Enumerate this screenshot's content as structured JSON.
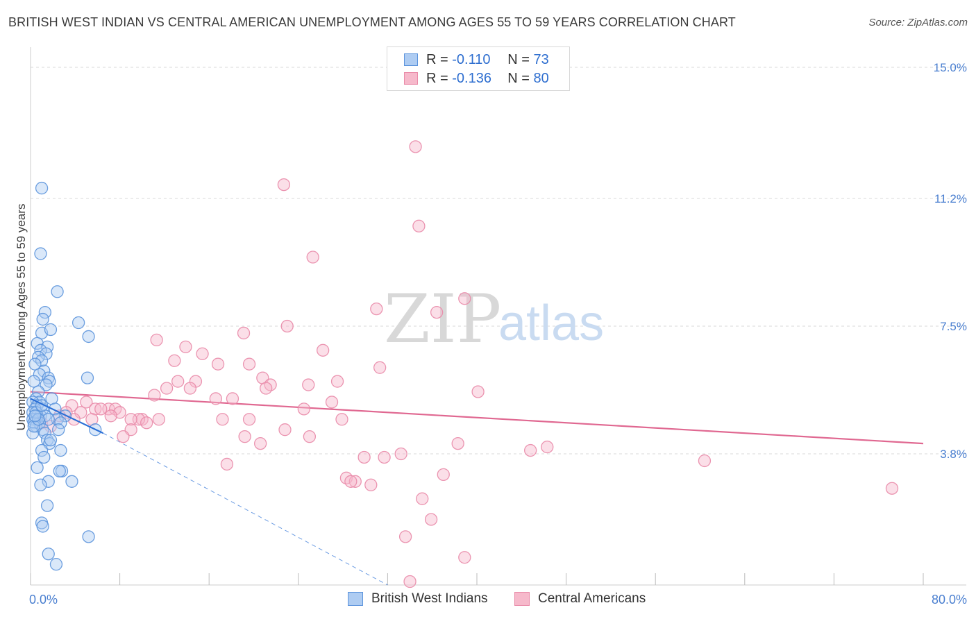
{
  "header": {
    "title": "BRITISH WEST INDIAN VS CENTRAL AMERICAN UNEMPLOYMENT AMONG AGES 55 TO 59 YEARS CORRELATION CHART",
    "source": "Source: ZipAtlas.com"
  },
  "watermark": {
    "zip": "ZIP",
    "atlas": "atlas"
  },
  "legend": {
    "r_label": "R =",
    "n_label": "N =",
    "rows": [
      {
        "r": "-0.110",
        "n": "73"
      },
      {
        "r": "-0.136",
        "n": "80"
      }
    ]
  },
  "colors": {
    "blue_fill": "#aeccf2",
    "blue_stroke": "#5b93dc",
    "blue_line": "#2a6fd6",
    "pink_fill": "#f6b9cb",
    "pink_stroke": "#e98aa8",
    "pink_line": "#e06891",
    "grid": "#d9d9d9",
    "axis_text": "#4a7fd0"
  },
  "chart_data": {
    "type": "scatter",
    "title": "BRITISH WEST INDIAN VS CENTRAL AMERICAN UNEMPLOYMENT AMONG AGES 55 TO 59 YEARS CORRELATION CHART",
    "ylabel": "Unemployment Among Ages 55 to 59 years",
    "xlabel": "",
    "xlim": [
      0,
      80
    ],
    "ylim": [
      0,
      15.5
    ],
    "x_tick_labels": [
      "0.0%",
      "80.0%"
    ],
    "y_ticks": [
      3.8,
      7.5,
      11.2,
      15.0
    ],
    "y_tick_labels": [
      "3.8%",
      "7.5%",
      "11.2%",
      "15.0%"
    ],
    "grid": "horizontal dashed",
    "legend_position": "top-center",
    "series": [
      {
        "name": "British West Indians",
        "color": "#aeccf2",
        "trend": {
          "x": [
            0.0,
            6.5
          ],
          "y": [
            5.4,
            4.4
          ],
          "extended_x": 32.0,
          "extended_y": 0.0
        },
        "points": [
          [
            1.0,
            11.5
          ],
          [
            0.9,
            9.6
          ],
          [
            2.4,
            8.5
          ],
          [
            1.3,
            7.9
          ],
          [
            1.1,
            7.7
          ],
          [
            4.3,
            7.6
          ],
          [
            1.0,
            7.3
          ],
          [
            1.8,
            7.4
          ],
          [
            5.2,
            7.2
          ],
          [
            0.6,
            7.0
          ],
          [
            1.5,
            6.9
          ],
          [
            0.9,
            6.8
          ],
          [
            1.4,
            6.7
          ],
          [
            0.7,
            6.6
          ],
          [
            1.0,
            6.5
          ],
          [
            0.4,
            6.4
          ],
          [
            1.2,
            6.2
          ],
          [
            0.8,
            6.1
          ],
          [
            1.6,
            6.0
          ],
          [
            5.1,
            6.0
          ],
          [
            0.3,
            5.9
          ],
          [
            1.7,
            5.9
          ],
          [
            1.4,
            5.8
          ],
          [
            0.7,
            5.6
          ],
          [
            1.9,
            5.4
          ],
          [
            0.5,
            5.4
          ],
          [
            0.8,
            5.3
          ],
          [
            0.2,
            5.3
          ],
          [
            0.6,
            5.2
          ],
          [
            1.1,
            5.1
          ],
          [
            0.4,
            5.1
          ],
          [
            2.2,
            5.1
          ],
          [
            0.2,
            5.0
          ],
          [
            0.9,
            4.9
          ],
          [
            0.6,
            4.9
          ],
          [
            1.3,
            4.9
          ],
          [
            3.1,
            4.9
          ],
          [
            0.4,
            4.8
          ],
          [
            0.2,
            4.8
          ],
          [
            2.4,
            4.8
          ],
          [
            1.6,
            4.8
          ],
          [
            0.8,
            4.7
          ],
          [
            0.3,
            4.7
          ],
          [
            2.7,
            4.7
          ],
          [
            0.5,
            4.6
          ],
          [
            1.1,
            4.5
          ],
          [
            2.5,
            4.5
          ],
          [
            5.8,
            4.5
          ],
          [
            0.2,
            4.4
          ],
          [
            1.3,
            4.4
          ],
          [
            1.5,
            4.2
          ],
          [
            1.7,
            4.1
          ],
          [
            2.7,
            3.9
          ],
          [
            1.0,
            3.9
          ],
          [
            1.2,
            3.7
          ],
          [
            0.6,
            3.4
          ],
          [
            2.8,
            3.3
          ],
          [
            3.7,
            3.0
          ],
          [
            1.6,
            3.0
          ],
          [
            0.9,
            2.9
          ],
          [
            2.6,
            3.3
          ],
          [
            1.5,
            2.3
          ],
          [
            1.0,
            1.8
          ],
          [
            1.1,
            1.7
          ],
          [
            5.2,
            1.4
          ],
          [
            1.6,
            0.9
          ],
          [
            2.3,
            0.6
          ],
          [
            0.3,
            4.6
          ],
          [
            0.5,
            5.0
          ],
          [
            1.8,
            4.2
          ],
          [
            0.7,
            4.8
          ],
          [
            1.0,
            5.2
          ],
          [
            0.4,
            4.9
          ]
        ]
      },
      {
        "name": "Central Americans",
        "color": "#f6b9cb",
        "trend": {
          "x": [
            0.0,
            80.0
          ],
          "y": [
            5.6,
            4.1
          ]
        },
        "points": [
          [
            34.5,
            12.7
          ],
          [
            22.7,
            11.6
          ],
          [
            34.8,
            10.4
          ],
          [
            25.3,
            9.5
          ],
          [
            38.9,
            8.3
          ],
          [
            31.0,
            8.0
          ],
          [
            36.4,
            7.9
          ],
          [
            23.0,
            7.5
          ],
          [
            19.1,
            7.3
          ],
          [
            11.3,
            7.1
          ],
          [
            13.9,
            6.9
          ],
          [
            26.2,
            6.8
          ],
          [
            15.4,
            6.7
          ],
          [
            12.9,
            6.5
          ],
          [
            16.8,
            6.4
          ],
          [
            19.6,
            6.4
          ],
          [
            31.3,
            6.3
          ],
          [
            20.8,
            6.0
          ],
          [
            13.2,
            5.9
          ],
          [
            27.5,
            5.9
          ],
          [
            14.8,
            5.9
          ],
          [
            21.5,
            5.8
          ],
          [
            24.9,
            5.8
          ],
          [
            12.2,
            5.7
          ],
          [
            14.3,
            5.7
          ],
          [
            21.1,
            5.7
          ],
          [
            40.1,
            5.6
          ],
          [
            11.1,
            5.5
          ],
          [
            16.6,
            5.4
          ],
          [
            18.1,
            5.4
          ],
          [
            27.0,
            5.3
          ],
          [
            5.0,
            5.3
          ],
          [
            3.7,
            5.2
          ],
          [
            7.0,
            5.1
          ],
          [
            5.8,
            5.1
          ],
          [
            24.5,
            5.1
          ],
          [
            6.3,
            5.1
          ],
          [
            7.6,
            5.1
          ],
          [
            8.0,
            5.0
          ],
          [
            3.2,
            5.0
          ],
          [
            4.5,
            5.0
          ],
          [
            2.6,
            4.9
          ],
          [
            7.2,
            4.9
          ],
          [
            11.5,
            4.8
          ],
          [
            19.6,
            4.8
          ],
          [
            27.9,
            4.8
          ],
          [
            10.0,
            4.8
          ],
          [
            9.7,
            4.8
          ],
          [
            5.5,
            4.8
          ],
          [
            9.0,
            4.8
          ],
          [
            17.2,
            4.8
          ],
          [
            3.9,
            4.8
          ],
          [
            10.4,
            4.7
          ],
          [
            1.0,
            4.7
          ],
          [
            1.8,
            4.6
          ],
          [
            9.0,
            4.5
          ],
          [
            22.8,
            4.5
          ],
          [
            19.2,
            4.3
          ],
          [
            8.3,
            4.3
          ],
          [
            25.0,
            4.3
          ],
          [
            38.3,
            4.1
          ],
          [
            20.6,
            4.1
          ],
          [
            46.3,
            4.0
          ],
          [
            44.8,
            3.9
          ],
          [
            29.9,
            3.7
          ],
          [
            31.7,
            3.7
          ],
          [
            33.2,
            3.8
          ],
          [
            60.4,
            3.6
          ],
          [
            17.6,
            3.5
          ],
          [
            37.0,
            3.2
          ],
          [
            28.3,
            3.1
          ],
          [
            29.1,
            3.0
          ],
          [
            28.7,
            3.0
          ],
          [
            30.5,
            2.9
          ],
          [
            77.2,
            2.8
          ],
          [
            35.1,
            2.5
          ],
          [
            35.9,
            1.9
          ],
          [
            33.6,
            1.4
          ],
          [
            38.9,
            0.8
          ],
          [
            34.0,
            0.1
          ]
        ]
      }
    ]
  },
  "bottom_legend": [
    "British West Indians",
    "Central Americans"
  ]
}
